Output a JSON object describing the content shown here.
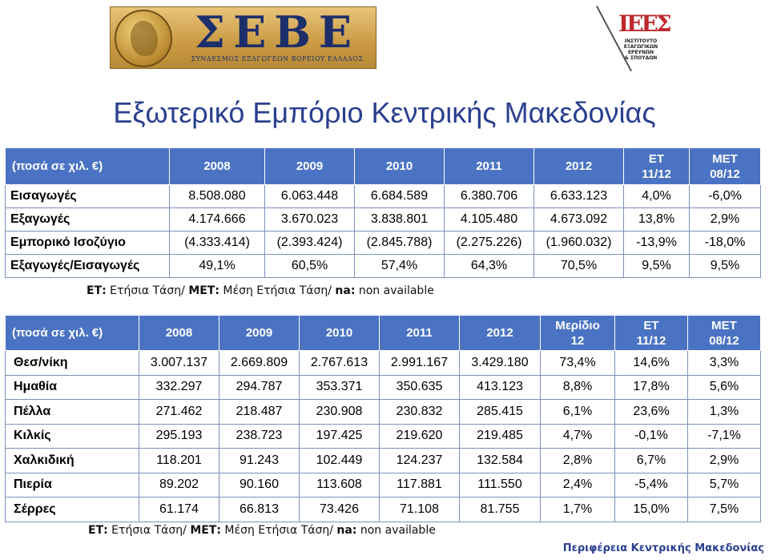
{
  "logos": {
    "sebe": {
      "letters": "ΣΕΒΕ",
      "subtitle": "ΣΥΝΔΕΣΜΟΣ ΕΞΑΓΩΓΕΩΝ ΒΟΡΕΙΟΥ ΕΛΛΑΔΟΣ"
    },
    "ieeys": {
      "mark": "ΙΕΕΣ",
      "lines": [
        "ΙΝΣΤΙΤΟΥΤΟ",
        "ΕΞΑΓΩΓΙΚΩΝ",
        "ΕΡΕΥΝΩΝ",
        "& ΣΠΟΥΔΩΝ"
      ]
    }
  },
  "title": "Εξωτερικό Εμπόριο Κεντρικής Μακεδονίας",
  "table1": {
    "headers": [
      "(ποσά σε χιλ. €)",
      "2008",
      "2009",
      "2010",
      "2011",
      "2012",
      "ΕΤ 11/12",
      "ΜΕΤ 08/12"
    ],
    "rows": [
      [
        "Εισαγωγές",
        "8.508.080",
        "6.063.448",
        "6.684.589",
        "6.380.706",
        "6.633.123",
        "4,0%",
        "-6,0%"
      ],
      [
        "Εξαγωγές",
        "4.174.666",
        "3.670.023",
        "3.838.801",
        "4.105.480",
        "4.673.092",
        "13,8%",
        "2,9%"
      ],
      [
        "Εμπορικό Ισοζύγιο",
        "(4.333.414)",
        "(2.393.424)",
        "(2.845.788)",
        "(2.275.226)",
        "(1.960.032)",
        "-13,9%",
        "-18,0%"
      ],
      [
        "Εξαγωγές/Εισαγωγές",
        "49,1%",
        "60,5%",
        "57,4%",
        "64,3%",
        "70,5%",
        "9,5%",
        "9,5%"
      ]
    ]
  },
  "note1": {
    "et_key": "ΕΤ:",
    "et_text": " Ετήσια Τάση/ ",
    "met_key": "ΜΕΤ:",
    "met_text": " Μέση Ετήσια Τάση/ ",
    "na_key": "na:",
    "na_text": " non available"
  },
  "table2": {
    "headers": [
      "(ποσά σε χιλ. €)",
      "2008",
      "2009",
      "2010",
      "2011",
      "2012",
      "Μερίδιο 12",
      "ΕΤ 11/12",
      "ΜΕΤ 08/12"
    ],
    "rows": [
      [
        "Θεσ/νίκη",
        "3.007.137",
        "2.669.809",
        "2.767.613",
        "2.991.167",
        "3.429.180",
        "73,4%",
        "14,6%",
        "3,3%"
      ],
      [
        "Ημαθία",
        "332.297",
        "294.787",
        "353.371",
        "350.635",
        "413.123",
        "8,8%",
        "17,8%",
        "5,6%"
      ],
      [
        "Πέλλα",
        "271.462",
        "218.487",
        "230.908",
        "230.832",
        "285.415",
        "6,1%",
        "23,6%",
        "1,3%"
      ],
      [
        "Κιλκίς",
        "295.193",
        "238.723",
        "197.425",
        "219.620",
        "219.485",
        "4,7%",
        "-0,1%",
        "-7,1%"
      ],
      [
        "Χαλκιδική",
        "118.201",
        "91.243",
        "102.449",
        "124.237",
        "132.584",
        "2,8%",
        "6,7%",
        "2,9%"
      ],
      [
        "Πιερία",
        "89.202",
        "90.160",
        "113.608",
        "117.881",
        "111.550",
        "2,4%",
        "-5,4%",
        "5,7%"
      ],
      [
        "Σέρρες",
        "61.174",
        "66.813",
        "73.426",
        "71.108",
        "81.755",
        "1,7%",
        "15,0%",
        "7,5%"
      ]
    ]
  },
  "note2": {
    "et_key": "ΕΤ:",
    "et_text": " Ετήσια Τάση/ ",
    "met_key": "ΜΕΤ:",
    "met_text": " Μέση Ετήσια Τάση/ ",
    "na_key": "na:",
    "na_text": " non available"
  },
  "footer": "Περιφέρεια Κεντρικής Μακεδονίας",
  "colors": {
    "header_bg": "#4a73c3",
    "title": "#2a3f8f",
    "grid": "#7d8fbf"
  }
}
